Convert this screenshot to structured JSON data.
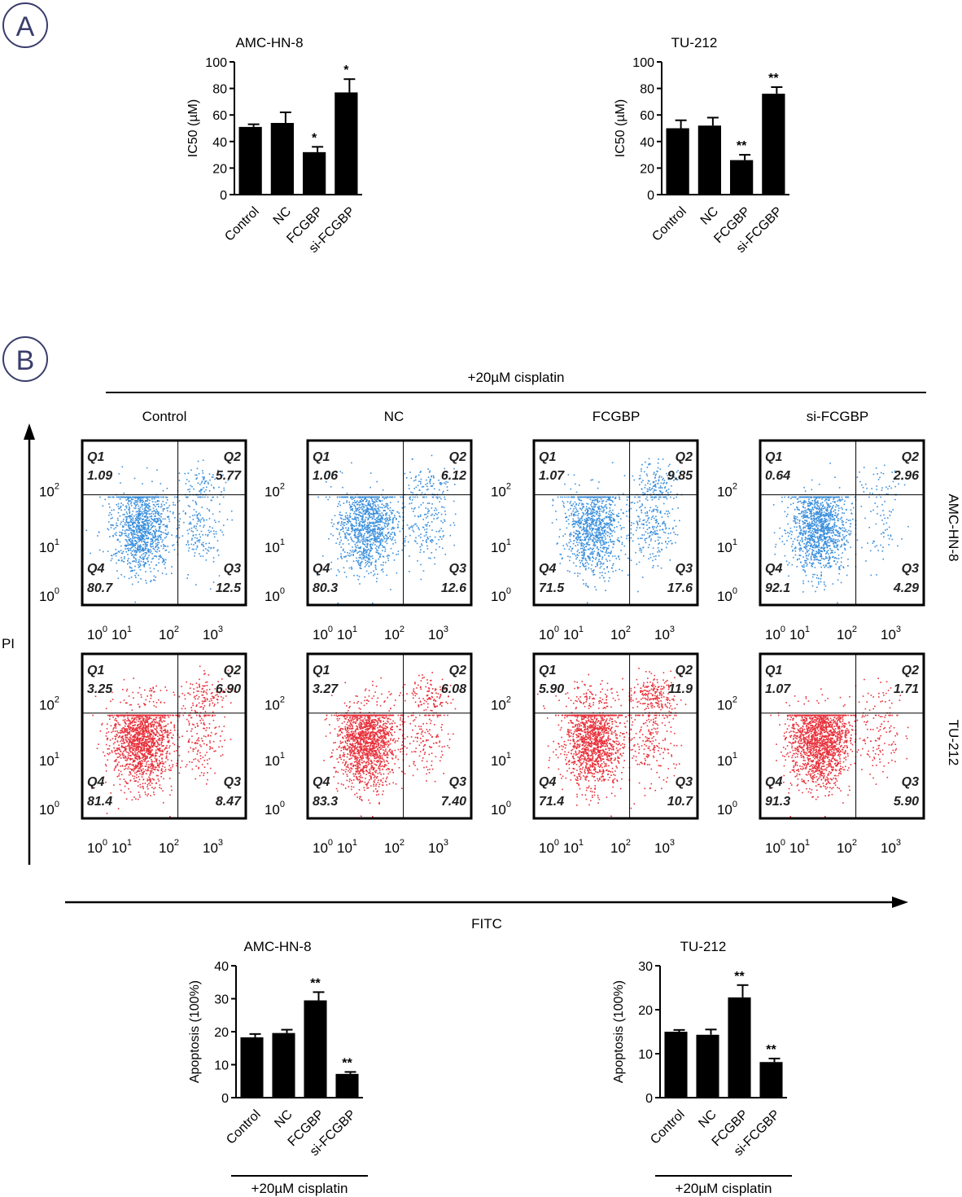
{
  "panels": [
    "A",
    "B"
  ],
  "treatment_label": "+20µM cisplatin",
  "groups": [
    "Control",
    "NC",
    "FCGBP",
    "si-FCGBP"
  ],
  "cell_lines": [
    "AMC-HN-8",
    "TU-212"
  ],
  "axis_labels": {
    "flow_y": "PI",
    "flow_x": "FITC"
  },
  "colors": {
    "AMC-HN-8": "#3a8fdc",
    "TU-212": "#e8303a",
    "bars": "#000000",
    "panel_label": "#3a3d6b"
  },
  "chart_data": [
    {
      "type": "bar",
      "panel": "A",
      "title": "AMC-HN-8",
      "categories": [
        "Control",
        "NC",
        "FCGBP",
        "si-FCGBP"
      ],
      "values": [
        51,
        54,
        32,
        77
      ],
      "errors": [
        2,
        8,
        4,
        10
      ],
      "significance": [
        "",
        "",
        "*",
        "*"
      ],
      "ylabel": "IC50 (µM)",
      "ylim": [
        0,
        100
      ],
      "yticks": [
        0,
        20,
        40,
        60,
        80,
        100
      ]
    },
    {
      "type": "bar",
      "panel": "A",
      "title": "TU-212",
      "categories": [
        "Control",
        "NC",
        "FCGBP",
        "si-FCGBP"
      ],
      "values": [
        50,
        52,
        26,
        76
      ],
      "errors": [
        6,
        6,
        4,
        5
      ],
      "significance": [
        "",
        "",
        "**",
        "**"
      ],
      "ylabel": "IC50 (µM)",
      "ylim": [
        0,
        100
      ],
      "yticks": [
        0,
        20,
        40,
        60,
        80,
        100
      ]
    },
    {
      "type": "scatter",
      "panel": "B",
      "subtype": "flow-cytometry-quadrants",
      "xlabel": "FITC",
      "ylabel": "PI",
      "x_ticks": [
        "10",
        "10",
        "10",
        "10"
      ],
      "x_tick_exponents": [
        "0",
        "1",
        "2",
        "3"
      ],
      "y_ticks": [
        "10",
        "10",
        "10"
      ],
      "y_tick_exponents": [
        "0",
        "1",
        "2"
      ],
      "quadrant_labels": [
        "Q1",
        "Q2",
        "Q3",
        "Q4"
      ],
      "plots": [
        {
          "cell_line": "AMC-HN-8",
          "group": "Control",
          "Q1": "1.09",
          "Q2": "5.77",
          "Q3": "12.5",
          "Q4": "80.7"
        },
        {
          "cell_line": "AMC-HN-8",
          "group": "NC",
          "Q1": "1.06",
          "Q2": "6.12",
          "Q3": "12.6",
          "Q4": "80.3"
        },
        {
          "cell_line": "AMC-HN-8",
          "group": "FCGBP",
          "Q1": "1.07",
          "Q2": "9.85",
          "Q3": "17.6",
          "Q4": "71.5"
        },
        {
          "cell_line": "AMC-HN-8",
          "group": "si-FCGBP",
          "Q1": "0.64",
          "Q2": "2.96",
          "Q3": "4.29",
          "Q4": "92.1"
        },
        {
          "cell_line": "TU-212",
          "group": "Control",
          "Q1": "3.25",
          "Q2": "6.90",
          "Q3": "8.47",
          "Q4": "81.4"
        },
        {
          "cell_line": "TU-212",
          "group": "NC",
          "Q1": "3.27",
          "Q2": "6.08",
          "Q3": "7.40",
          "Q4": "83.3"
        },
        {
          "cell_line": "TU-212",
          "group": "FCGBP",
          "Q1": "5.90",
          "Q2": "11.9",
          "Q3": "10.7",
          "Q4": "71.4"
        },
        {
          "cell_line": "TU-212",
          "group": "si-FCGBP",
          "Q1": "1.07",
          "Q2": "1.71",
          "Q3": "5.90",
          "Q4": "91.3"
        }
      ]
    },
    {
      "type": "bar",
      "panel": "B",
      "title": "AMC-HN-8",
      "categories": [
        "Control",
        "NC",
        "FCGBP",
        "si-FCGBP"
      ],
      "values": [
        18.3,
        19.6,
        29.5,
        7.2
      ],
      "errors": [
        1,
        1,
        2.5,
        0.6
      ],
      "significance": [
        "",
        "",
        "**",
        "**"
      ],
      "ylabel": "Apoptosis (100%)",
      "ylim": [
        0,
        40
      ],
      "yticks": [
        0,
        10,
        20,
        30,
        40
      ],
      "group_label": "+20µM cisplatin"
    },
    {
      "type": "bar",
      "panel": "B",
      "title": "TU-212",
      "categories": [
        "Control",
        "NC",
        "FCGBP",
        "si-FCGBP"
      ],
      "values": [
        15,
        14.3,
        22.8,
        8.1
      ],
      "errors": [
        0.4,
        1.2,
        2.8,
        0.8
      ],
      "significance": [
        "",
        "",
        "**",
        "**"
      ],
      "ylabel": "Apoptosis (100%)",
      "ylim": [
        0,
        30
      ],
      "yticks": [
        0,
        10,
        20,
        30
      ],
      "group_label": "+20µM cisplatin"
    }
  ]
}
